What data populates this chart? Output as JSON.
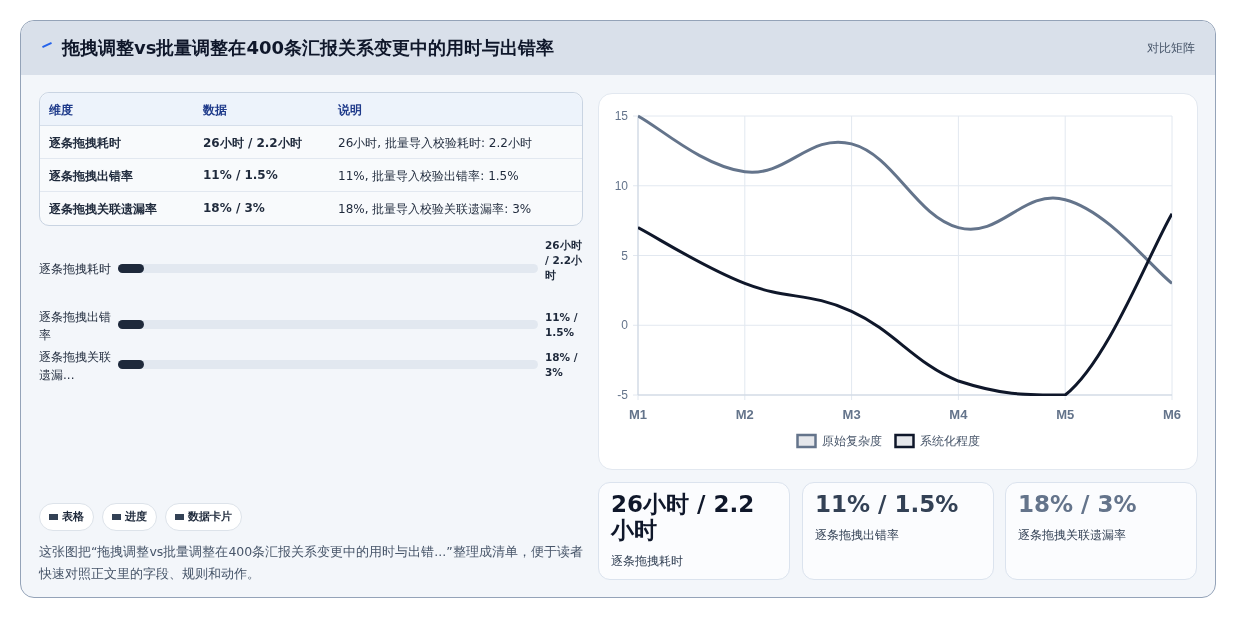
{
  "chart_data": [
    {
      "type": "other",
      "title": "拖拽调整vs批量调整在400条汇报关系变更中的用时与出错率",
      "annotations": [
        "对比矩阵"
      ]
    },
    {
      "type": "other",
      "categories": [
        "维度",
        "数据",
        "说明"
      ],
      "cell_labels": [
        [
          "逐条拖拽耗时",
          "26小时 / 2.2小时",
          "26小时, 批量导入校验耗时: 2.2小时"
        ],
        [
          "逐条拖拽出错率",
          "11% / 1.5%",
          "11%, 批量导入校验出错率: 1.5%"
        ],
        [
          "逐条拖拽关联遗漏率",
          "18% / 3%",
          "18%, 批量导入校验关联遗漏率: 3%"
        ]
      ]
    },
    {
      "type": "other",
      "categories": [
        "逐条拖拽耗时",
        "逐条拖拽出错率",
        "逐条拖拽关联遗漏..."
      ],
      "annotations": [
        "26小时 / 2.2小时",
        "11% / 1.5%",
        "18% / 3%"
      ]
    },
    {
      "type": "line",
      "categories": [
        "M1",
        "M2",
        "M3",
        "M4",
        "M5",
        "M6"
      ],
      "ylim": [
        -5,
        15
      ],
      "yticks": [
        -5,
        0,
        5,
        10,
        15
      ],
      "grid": true,
      "legend": "bottom",
      "series": [
        {
          "name": "原始复杂度",
          "color": "#64748b",
          "values": [
            15,
            11,
            13,
            7,
            9,
            3
          ]
        },
        {
          "name": "系统化程度",
          "color": "#0f172a",
          "values": [
            7,
            3,
            1,
            -4,
            -5,
            8
          ]
        }
      ]
    },
    {
      "type": "other",
      "categories": [
        "逐条拖拽耗时",
        "逐条拖拽出错率",
        "逐条拖拽关联遗漏率"
      ],
      "annotations": [
        "26小时 / 2.2小时",
        "11% / 1.5%",
        "18% / 3%"
      ]
    },
    {
      "type": "other",
      "categories": [
        "表格",
        "进度",
        "数据卡片"
      ],
      "annotations": [
        "这张图把“拖拽调整vs批量调整在400条汇报关系变更中的用时与出错...”整理成清单，便于读者快速对照正文里的字段、规则和动作。"
      ]
    }
  ]
}
